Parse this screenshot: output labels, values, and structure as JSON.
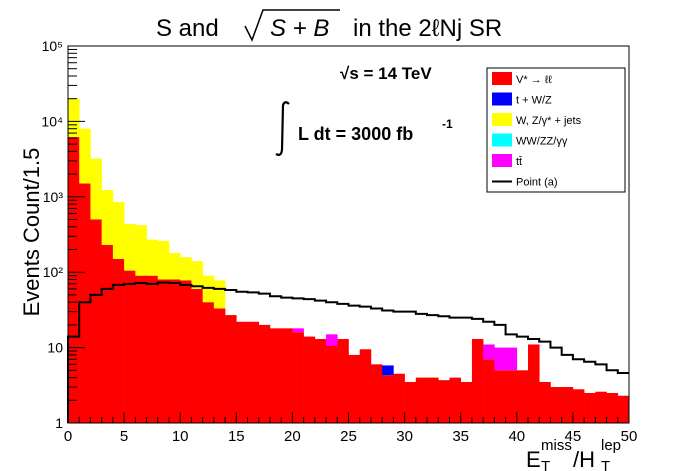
{
  "title": {
    "prefix": "S and",
    "sqrt_term": "S + B",
    "suffix": "in the 2ℓNj SR"
  },
  "annotations": {
    "energy": "√s = 14 TeV",
    "lumi": "L dt = 3000 fb",
    "lumi_exp": "-1"
  },
  "colors": {
    "dy": "#ff0000",
    "top": "#0000ff",
    "wz": "#ffff00",
    "vv": "#00ffff",
    "tt": "#ff00ff",
    "signal": "#000000"
  },
  "chart_data": {
    "type": "bar",
    "stacked": true,
    "log_y": true,
    "xlabel": "E_T^miss/H_T^lep",
    "ylabel": "Events Count/1.5",
    "xlim": [
      0,
      50
    ],
    "ylim": [
      1,
      100000
    ],
    "x_ticks": [
      "0",
      "5",
      "10",
      "15",
      "20",
      "25",
      "30",
      "35",
      "40",
      "45",
      "50"
    ],
    "y_ticks": [
      "1",
      "10",
      "10²",
      "10³",
      "10⁴",
      "10⁵"
    ],
    "bin_edges": [
      0,
      1,
      2,
      3,
      4,
      5,
      6,
      7,
      8,
      9,
      10,
      11,
      12,
      13,
      14,
      15,
      16,
      17,
      18,
      19,
      20,
      21,
      22,
      23,
      24,
      25,
      26,
      27,
      28,
      29,
      30,
      31,
      32,
      33,
      34,
      35,
      36,
      37,
      38,
      39,
      40,
      41,
      42,
      43,
      44,
      45,
      46,
      47,
      48,
      49,
      50
    ],
    "series": [
      {
        "name": "V* → ℓℓ",
        "key": "dy",
        "values": [
          6200,
          1500,
          500,
          230,
          150,
          105,
          90,
          90,
          80,
          80,
          78,
          60,
          40,
          33,
          27,
          22,
          22,
          20,
          18,
          18,
          16,
          14,
          13,
          10.5,
          13,
          8,
          9.5,
          6,
          4.3,
          4.5,
          3.5,
          4,
          4,
          3.7,
          4,
          3.5,
          13,
          7,
          5,
          5,
          5,
          11,
          3.5,
          3,
          3,
          2.8,
          2.5,
          2.6,
          2.5,
          2.3
        ]
      },
      {
        "name": "t + W/Z",
        "key": "top",
        "values": [
          0,
          0,
          0,
          0,
          0,
          0,
          0,
          0,
          0,
          0,
          0,
          0,
          0,
          0,
          0,
          0,
          0,
          0,
          0,
          0,
          0,
          0,
          0,
          0,
          0,
          0,
          0,
          0,
          1.5,
          0,
          0,
          0,
          0,
          0,
          0,
          0,
          0,
          0,
          0,
          0,
          0,
          0,
          0,
          0,
          0,
          0,
          0,
          0,
          0,
          0
        ]
      },
      {
        "name": "W, Z/γ* + jets",
        "key": "wz",
        "values": [
          14000,
          6500,
          2700,
          1000,
          700,
          330,
          330,
          180,
          180,
          100,
          80,
          80,
          50,
          45,
          0,
          0,
          0,
          0,
          0,
          0,
          0,
          0,
          0,
          0,
          0,
          0,
          0,
          0,
          0,
          0,
          0,
          0,
          0,
          0,
          0,
          0,
          0,
          0,
          0,
          0,
          0,
          0,
          0,
          0,
          0,
          0,
          0,
          0,
          0,
          0
        ]
      },
      {
        "name": "WW/ZZ/γγ",
        "key": "vv",
        "values": [
          0,
          0,
          0,
          0,
          0,
          0,
          0,
          0,
          0,
          0,
          0,
          0,
          0,
          0,
          0,
          0,
          0,
          0,
          0,
          0,
          0,
          0,
          0,
          0,
          0,
          0,
          0,
          0,
          0,
          0,
          0,
          0,
          0,
          0,
          0,
          0,
          0,
          0,
          0,
          0,
          0,
          0,
          0,
          0,
          0,
          0,
          0,
          0,
          0,
          0
        ]
      },
      {
        "name": "tt̄",
        "key": "tt",
        "values": [
          0,
          0,
          0,
          0,
          0,
          0,
          0,
          0,
          0,
          0,
          0,
          0,
          0,
          0,
          0,
          0,
          0,
          0,
          0,
          0,
          2,
          0,
          0,
          4.5,
          0,
          0,
          0,
          0,
          0,
          0,
          0,
          0,
          0,
          0,
          0,
          0,
          0,
          4,
          5,
          5,
          0,
          0,
          0,
          0,
          0,
          0,
          0,
          0,
          0,
          0
        ]
      }
    ],
    "signal": {
      "name": "Point (a)",
      "values": [
        14,
        40,
        50,
        60,
        68,
        70,
        72,
        70,
        73,
        72,
        68,
        65,
        62,
        60,
        58,
        55,
        54,
        52,
        48,
        46,
        45,
        44,
        42,
        40,
        38,
        36,
        35,
        33,
        31,
        30,
        30,
        28,
        27,
        26,
        25,
        25,
        24,
        22,
        20,
        15,
        14,
        13,
        12,
        10,
        8,
        7,
        6.5,
        6,
        5,
        4.6
      ]
    },
    "legend_position": "top-right",
    "grid": false
  }
}
